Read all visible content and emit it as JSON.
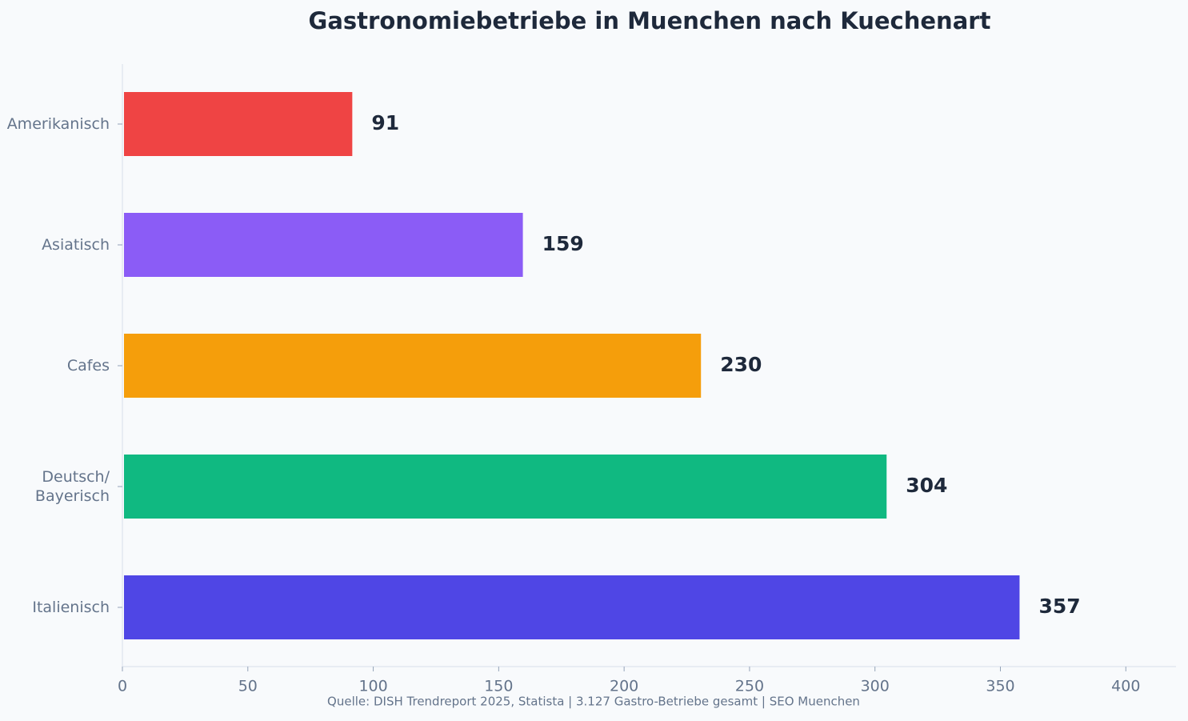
{
  "chart_data": {
    "type": "bar",
    "orientation": "horizontal",
    "title": "Gastronomiebetriebe in Muenchen nach Kuechenart",
    "source": "Quelle: DISH Trendreport 2025, Statista | 3.127 Gastro-Betriebe gesamt | SEO Muenchen",
    "categories": [
      "Amerikanisch",
      "Asiatisch",
      "Cafes",
      "Deutsch/\nBayerisch",
      "Italienisch"
    ],
    "values": [
      91,
      159,
      230,
      304,
      357
    ],
    "colors": [
      "#ef4444",
      "#8b5cf6",
      "#f59e0b",
      "#10b981",
      "#4f46e5"
    ],
    "xlim": [
      0,
      420
    ],
    "xticks": [
      0,
      50,
      100,
      150,
      200,
      250,
      300,
      350,
      400
    ],
    "grid": false
  }
}
